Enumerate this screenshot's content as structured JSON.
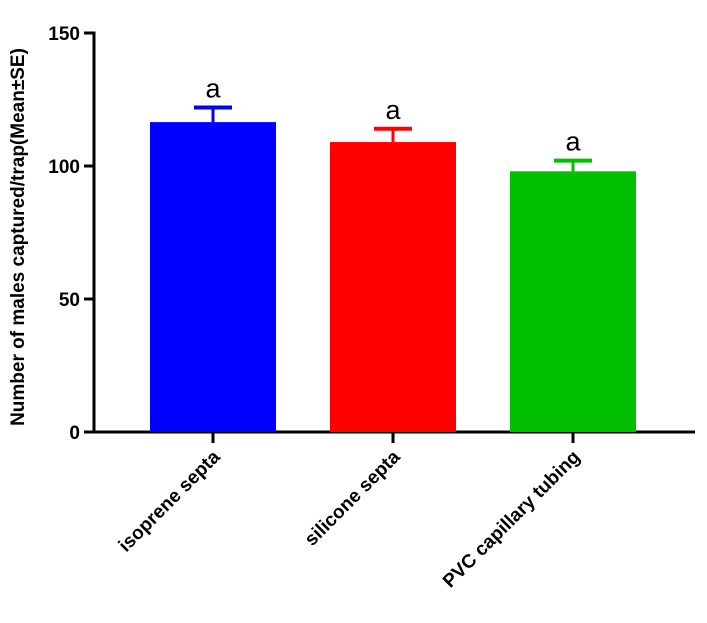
{
  "chart_data": {
    "type": "bar",
    "title": "",
    "xlabel": "",
    "ylabel": "Number of males captured/trap(Mean±SE)",
    "ylim": [
      0,
      150
    ],
    "yticks": [
      0,
      50,
      100,
      150
    ],
    "grid": false,
    "categories": [
      "isoprene septa",
      "silicone septa",
      "PVC capillary tubing"
    ],
    "values": [
      116.5,
      109,
      98
    ],
    "errors": [
      5.5,
      5,
      4
    ],
    "annotations": [
      "a",
      "a",
      "a"
    ],
    "colors": [
      "#0000ff",
      "#ff0000",
      "#00c000"
    ]
  }
}
